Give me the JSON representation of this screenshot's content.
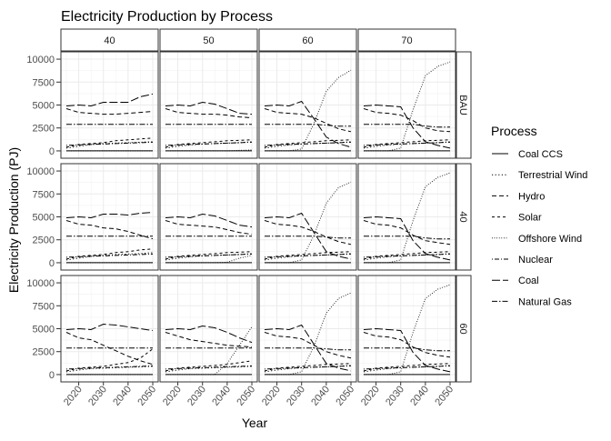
{
  "chart_data": {
    "type": "line",
    "title": "Electricity Production by Process",
    "xlabel": "Year",
    "ylabel": "Electricity Production (PJ)",
    "legend_title": "Process",
    "legend_position": "right",
    "grid": true,
    "xlim": [
      2015,
      2050
    ],
    "ylim": [
      0,
      10000
    ],
    "x_ticks": [
      2020,
      2030,
      2040,
      2050
    ],
    "x_tick_labels": [
      "2020",
      "2030",
      "2040",
      "2050"
    ],
    "y_ticks": [
      0,
      2500,
      5000,
      7500,
      10000
    ],
    "y_tick_labels": [
      "0",
      "2500",
      "5000",
      "7500",
      "10000"
    ],
    "col_facets": [
      "40",
      "50",
      "60",
      "70"
    ],
    "row_facets": [
      "BAU",
      "40",
      "60"
    ],
    "legend": [
      {
        "name": "Coal CCS",
        "dash": "solid"
      },
      {
        "name": "Terrestrial Wind",
        "dash": "dotted"
      },
      {
        "name": "Hydro",
        "dash": "dashed"
      },
      {
        "name": "Solar",
        "dash": "shortdash"
      },
      {
        "name": "Offshore Wind",
        "dash": "finedot"
      },
      {
        "name": "Nuclear",
        "dash": "dotdash"
      },
      {
        "name": "Coal",
        "dash": "longdash"
      },
      {
        "name": "Natural Gas",
        "dash": "twodash"
      }
    ],
    "x": [
      2015,
      2020,
      2025,
      2030,
      2035,
      2040,
      2045,
      2050
    ],
    "panels": [
      {
        "row": "BAU",
        "col": "40",
        "series": {
          "Coal CCS": [
            0,
            0,
            0,
            0,
            0,
            0,
            0,
            0
          ],
          "Terrestrial Wind": [
            300,
            500,
            700,
            800,
            850,
            900,
            950,
            1000
          ],
          "Hydro": [
            4600,
            4200,
            4100,
            4000,
            4000,
            4100,
            4200,
            4300
          ],
          "Solar": [
            400,
            700,
            800,
            900,
            1100,
            1200,
            1300,
            1400
          ],
          "Offshore Wind": [
            0,
            0,
            0,
            0,
            0,
            0,
            0,
            0
          ],
          "Nuclear": [
            600,
            650,
            700,
            750,
            800,
            850,
            900,
            950
          ],
          "Coal": [
            4900,
            5000,
            4900,
            5300,
            5300,
            5300,
            5900,
            6200
          ],
          "Natural Gas": [
            2900,
            2900,
            2900,
            2900,
            2900,
            2900,
            2900,
            2900
          ]
        }
      },
      {
        "row": "BAU",
        "col": "50",
        "series": {
          "Coal CCS": [
            0,
            0,
            0,
            0,
            0,
            0,
            0,
            0
          ],
          "Terrestrial Wind": [
            300,
            500,
            650,
            750,
            800,
            850,
            900,
            1000
          ],
          "Hydro": [
            4600,
            4200,
            4100,
            4000,
            4000,
            3900,
            3700,
            3600
          ],
          "Solar": [
            400,
            700,
            800,
            900,
            1000,
            1100,
            1150,
            1200
          ],
          "Offshore Wind": [
            0,
            0,
            0,
            0,
            0,
            0,
            50,
            100
          ],
          "Nuclear": [
            600,
            650,
            700,
            750,
            800,
            850,
            900,
            950
          ],
          "Coal": [
            4900,
            5000,
            4900,
            5300,
            5100,
            4600,
            4100,
            4000
          ],
          "Natural Gas": [
            2900,
            2900,
            2900,
            2900,
            2900,
            2900,
            2900,
            2900
          ]
        }
      },
      {
        "row": "BAU",
        "col": "60",
        "series": {
          "Coal CCS": [
            0,
            0,
            0,
            0,
            0,
            0,
            0,
            0
          ],
          "Terrestrial Wind": [
            300,
            500,
            650,
            750,
            800,
            850,
            900,
            1000
          ],
          "Hydro": [
            4600,
            4200,
            4100,
            4000,
            3600,
            3000,
            2400,
            2100
          ],
          "Solar": [
            400,
            700,
            800,
            900,
            1000,
            1100,
            1150,
            1200
          ],
          "Offshore Wind": [
            0,
            0,
            0,
            200,
            3000,
            6500,
            8000,
            8800
          ],
          "Nuclear": [
            600,
            650,
            700,
            750,
            800,
            850,
            900,
            950
          ],
          "Coal": [
            4900,
            5000,
            4900,
            5400,
            3500,
            1500,
            800,
            400
          ],
          "Natural Gas": [
            2900,
            2900,
            2900,
            2900,
            2900,
            2800,
            2700,
            2700
          ]
        }
      },
      {
        "row": "BAU",
        "col": "70",
        "series": {
          "Coal CCS": [
            0,
            0,
            0,
            0,
            0,
            0,
            0,
            0
          ],
          "Terrestrial Wind": [
            300,
            500,
            650,
            750,
            800,
            850,
            900,
            1000
          ],
          "Hydro": [
            4600,
            4200,
            4100,
            3900,
            3300,
            2500,
            2200,
            2100
          ],
          "Solar": [
            400,
            700,
            800,
            900,
            1000,
            1100,
            1150,
            1200
          ],
          "Offshore Wind": [
            0,
            0,
            0,
            300,
            4500,
            8200,
            9200,
            9700
          ],
          "Nuclear": [
            600,
            650,
            700,
            750,
            800,
            850,
            900,
            950
          ],
          "Coal": [
            4900,
            5000,
            4900,
            4800,
            2500,
            1000,
            600,
            300
          ],
          "Natural Gas": [
            2900,
            2900,
            2900,
            2900,
            2900,
            2700,
            2600,
            2600
          ]
        }
      },
      {
        "row": "40",
        "col": "40",
        "series": {
          "Coal CCS": [
            0,
            0,
            0,
            0,
            0,
            0,
            0,
            0
          ],
          "Terrestrial Wind": [
            300,
            500,
            700,
            800,
            900,
            950,
            1000,
            1100
          ],
          "Hydro": [
            4600,
            4200,
            4100,
            3800,
            3700,
            3400,
            3000,
            2600
          ],
          "Solar": [
            400,
            700,
            800,
            900,
            1100,
            1200,
            1400,
            1500
          ],
          "Offshore Wind": [
            0,
            0,
            0,
            0,
            0,
            0,
            0,
            0
          ],
          "Nuclear": [
            600,
            650,
            700,
            750,
            800,
            850,
            900,
            950
          ],
          "Coal": [
            4900,
            5000,
            4900,
            5300,
            5300,
            5200,
            5400,
            5500
          ],
          "Natural Gas": [
            2900,
            2900,
            2900,
            2900,
            2900,
            2900,
            2900,
            2900
          ]
        }
      },
      {
        "row": "40",
        "col": "50",
        "series": {
          "Coal CCS": [
            0,
            0,
            0,
            0,
            0,
            0,
            0,
            0
          ],
          "Terrestrial Wind": [
            300,
            500,
            650,
            750,
            800,
            850,
            900,
            1000
          ],
          "Hydro": [
            4600,
            4200,
            4100,
            4000,
            3900,
            3600,
            3300,
            3100
          ],
          "Solar": [
            400,
            700,
            800,
            900,
            1000,
            1100,
            1150,
            1200
          ],
          "Offshore Wind": [
            0,
            0,
            0,
            0,
            0,
            50,
            500,
            800
          ],
          "Nuclear": [
            600,
            650,
            700,
            750,
            800,
            850,
            900,
            950
          ],
          "Coal": [
            4900,
            5000,
            4900,
            5300,
            5100,
            4600,
            4100,
            3900
          ],
          "Natural Gas": [
            2900,
            2900,
            2900,
            2900,
            2900,
            2900,
            2900,
            2900
          ]
        }
      },
      {
        "row": "40",
        "col": "60",
        "series": {
          "Coal CCS": [
            0,
            0,
            0,
            0,
            0,
            0,
            0,
            0
          ],
          "Terrestrial Wind": [
            300,
            500,
            650,
            750,
            800,
            850,
            900,
            1000
          ],
          "Hydro": [
            4600,
            4200,
            4100,
            3900,
            3400,
            2800,
            2300,
            2000
          ],
          "Solar": [
            400,
            700,
            800,
            900,
            1000,
            1100,
            1150,
            1200
          ],
          "Offshore Wind": [
            0,
            0,
            0,
            300,
            3000,
            6500,
            8200,
            8800
          ],
          "Nuclear": [
            600,
            650,
            700,
            750,
            800,
            850,
            900,
            950
          ],
          "Coal": [
            4900,
            5000,
            4900,
            5400,
            3300,
            1200,
            700,
            400
          ],
          "Natural Gas": [
            2900,
            2900,
            2900,
            2900,
            2900,
            2800,
            2700,
            2700
          ]
        }
      },
      {
        "row": "40",
        "col": "70",
        "series": {
          "Coal CCS": [
            0,
            0,
            0,
            0,
            0,
            0,
            0,
            0
          ],
          "Terrestrial Wind": [
            300,
            500,
            650,
            750,
            800,
            850,
            900,
            1000
          ],
          "Hydro": [
            4600,
            4200,
            4100,
            3800,
            3000,
            2400,
            2200,
            2000
          ],
          "Solar": [
            400,
            700,
            800,
            900,
            1000,
            1100,
            1150,
            1200
          ],
          "Offshore Wind": [
            0,
            0,
            0,
            300,
            4600,
            8300,
            9300,
            9800
          ],
          "Nuclear": [
            600,
            650,
            700,
            750,
            800,
            850,
            900,
            950
          ],
          "Coal": [
            4900,
            5000,
            4900,
            4800,
            2400,
            1000,
            600,
            300
          ],
          "Natural Gas": [
            2900,
            2900,
            2900,
            2900,
            2900,
            2700,
            2600,
            2600
          ]
        }
      },
      {
        "row": "60",
        "col": "40",
        "series": {
          "Coal CCS": [
            0,
            0,
            0,
            0,
            0,
            0,
            0,
            0
          ],
          "Terrestrial Wind": [
            300,
            500,
            650,
            700,
            750,
            800,
            850,
            900
          ],
          "Hydro": [
            4600,
            4000,
            3800,
            3200,
            2600,
            2000,
            1500,
            1100
          ],
          "Solar": [
            400,
            700,
            800,
            900,
            1100,
            1300,
            1800,
            2800
          ],
          "Offshore Wind": [
            0,
            0,
            0,
            0,
            0,
            0,
            0,
            0
          ],
          "Nuclear": [
            600,
            650,
            700,
            750,
            800,
            850,
            900,
            950
          ],
          "Coal": [
            4900,
            5000,
            4900,
            5500,
            5400,
            5200,
            5000,
            4800
          ],
          "Natural Gas": [
            2900,
            2900,
            2900,
            2900,
            2900,
            2900,
            2900,
            2900
          ]
        }
      },
      {
        "row": "60",
        "col": "50",
        "series": {
          "Coal CCS": [
            0,
            0,
            0,
            0,
            0,
            0,
            0,
            0
          ],
          "Terrestrial Wind": [
            300,
            500,
            650,
            700,
            750,
            800,
            850,
            900
          ],
          "Hydro": [
            4600,
            4200,
            3800,
            3600,
            3400,
            3200,
            3100,
            3000
          ],
          "Solar": [
            400,
            700,
            800,
            900,
            1000,
            1100,
            1300,
            1500
          ],
          "Offshore Wind": [
            0,
            0,
            0,
            0,
            0,
            1200,
            3200,
            5200
          ],
          "Nuclear": [
            600,
            650,
            700,
            750,
            800,
            850,
            900,
            950
          ],
          "Coal": [
            4900,
            5000,
            4900,
            5300,
            5100,
            4600,
            4000,
            3500
          ],
          "Natural Gas": [
            2900,
            2900,
            2900,
            2900,
            2900,
            2900,
            2900,
            2900
          ]
        }
      },
      {
        "row": "60",
        "col": "60",
        "series": {
          "Coal CCS": [
            0,
            0,
            0,
            0,
            0,
            0,
            0,
            0
          ],
          "Terrestrial Wind": [
            300,
            500,
            650,
            750,
            800,
            850,
            900,
            1000
          ],
          "Hydro": [
            4600,
            4200,
            4100,
            3900,
            3200,
            2500,
            2100,
            1800
          ],
          "Solar": [
            400,
            700,
            800,
            900,
            1000,
            1100,
            1150,
            1200
          ],
          "Offshore Wind": [
            0,
            0,
            0,
            300,
            3100,
            6700,
            8300,
            8900
          ],
          "Nuclear": [
            600,
            650,
            700,
            750,
            800,
            850,
            900,
            950
          ],
          "Coal": [
            4900,
            5000,
            4900,
            5400,
            3300,
            1200,
            700,
            400
          ],
          "Natural Gas": [
            2900,
            2900,
            2900,
            2900,
            2900,
            2800,
            2700,
            2700
          ]
        }
      },
      {
        "row": "60",
        "col": "70",
        "series": {
          "Coal CCS": [
            0,
            0,
            0,
            0,
            0,
            0,
            0,
            0
          ],
          "Terrestrial Wind": [
            300,
            500,
            650,
            750,
            800,
            850,
            900,
            1000
          ],
          "Hydro": [
            4600,
            4200,
            4100,
            3800,
            3000,
            2400,
            2100,
            1900
          ],
          "Solar": [
            400,
            700,
            800,
            900,
            1000,
            1100,
            1150,
            1200
          ],
          "Offshore Wind": [
            0,
            0,
            0,
            300,
            4600,
            8300,
            9300,
            9800
          ],
          "Nuclear": [
            600,
            650,
            700,
            750,
            800,
            850,
            900,
            950
          ],
          "Coal": [
            4900,
            5000,
            4900,
            4800,
            2400,
            1000,
            600,
            300
          ],
          "Natural Gas": [
            2900,
            2900,
            2900,
            2900,
            2900,
            2700,
            2600,
            2600
          ]
        }
      }
    ]
  }
}
